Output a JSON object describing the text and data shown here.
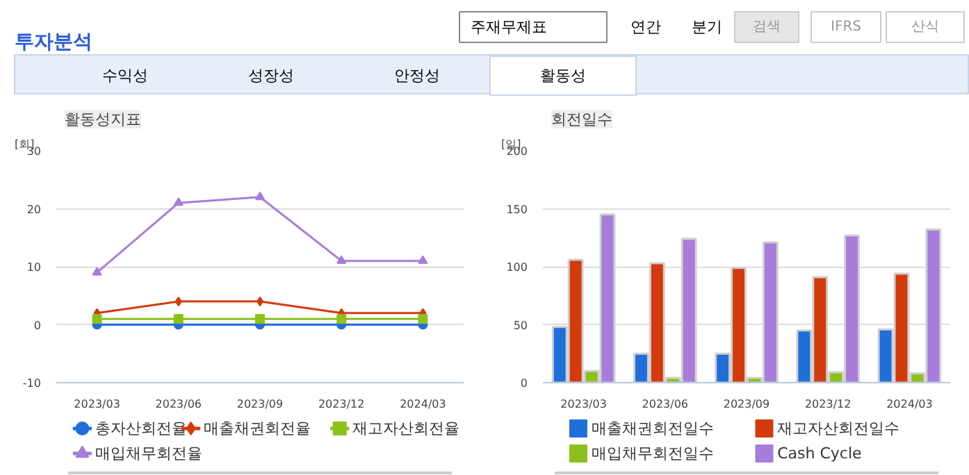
{
  "chart_data": [
    {
      "type": "other",
      "title": "투자분석",
      "annotations": [
        "주재무제표",
        "연간",
        "분기",
        "검색",
        "IFRS",
        "산식",
        "수익성",
        "성장성",
        "안정성",
        "활동성"
      ]
    },
    {
      "type": "line",
      "title": "활동성지표",
      "ylabel": "[회]",
      "categories": [
        "2023/03",
        "2023/06",
        "2023/09",
        "2023/12",
        "2024/03"
      ],
      "ylim": [
        -10,
        30
      ],
      "yticks": [
        -10,
        0,
        10,
        20,
        30
      ],
      "grid": "y",
      "legend": "bottom",
      "series": [
        {
          "name": "총자산회전율",
          "color": "#1f6fdb",
          "marker": "circle",
          "values": [
            0,
            0,
            0,
            0,
            0
          ]
        },
        {
          "name": "매출채권회전율",
          "color": "#d33a0c",
          "marker": "diamond",
          "values": [
            2,
            4,
            4,
            2,
            2
          ]
        },
        {
          "name": "재고자산회전율",
          "color": "#8cc01a",
          "marker": "square",
          "values": [
            1,
            1,
            1,
            1,
            1
          ]
        },
        {
          "name": "매입채무회전율",
          "color": "#a77cdb",
          "marker": "triangle",
          "values": [
            9,
            21,
            22,
            11,
            11
          ]
        }
      ]
    },
    {
      "type": "bar",
      "title": "회전일수",
      "ylabel": "[일]",
      "categories": [
        "2023/03",
        "2023/06",
        "2023/09",
        "2023/12",
        "2024/03"
      ],
      "ylim": [
        0,
        200
      ],
      "yticks": [
        0,
        50,
        100,
        150,
        200
      ],
      "grid": "y",
      "legend": "bottom",
      "series": [
        {
          "name": "매출채권회전일수",
          "color": "#1f6fdb",
          "values": [
            48,
            25,
            25,
            45,
            46
          ]
        },
        {
          "name": "재고자산회전일수",
          "color": "#d33a0c",
          "values": [
            106,
            103,
            99,
            91,
            94
          ]
        },
        {
          "name": "매입채무회전일수",
          "color": "#8cc01a",
          "values": [
            10,
            4,
            4,
            9,
            8
          ]
        },
        {
          "name": "Cash Cycle",
          "color": "#a77cdb",
          "values": [
            145,
            124,
            121,
            127,
            132
          ]
        }
      ]
    }
  ]
}
